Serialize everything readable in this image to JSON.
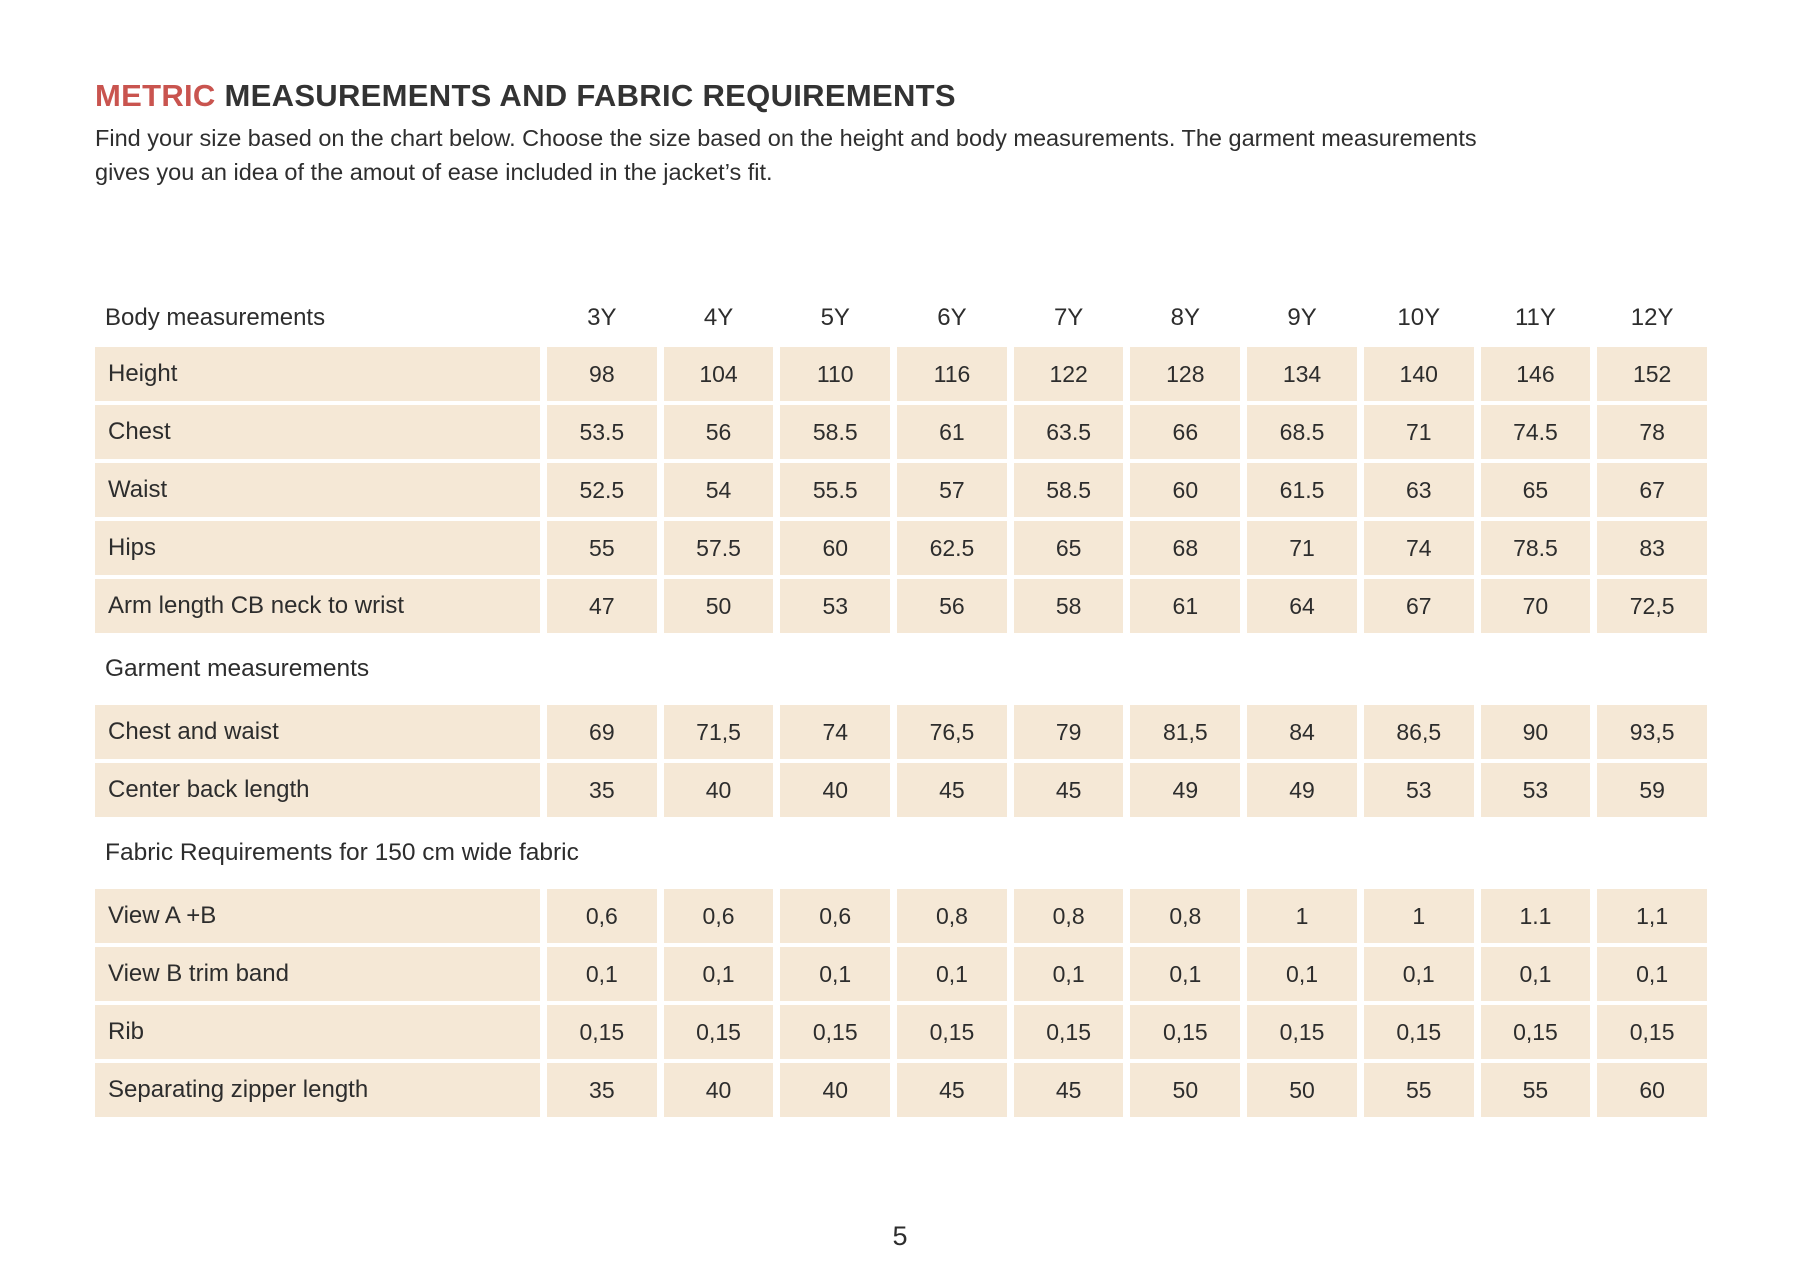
{
  "colors": {
    "accent": "#c9544f",
    "cell_bg": "#f5e8d6",
    "text": "#2d2d2d"
  },
  "header": {
    "title_accent": "METRIC",
    "title_rest": "MEASUREMENTS AND FABRIC REQUIREMENTS",
    "subtitle_lines": [
      "Find your size based on the chart below. Choose the size based on the height and body measurements. The garment measurements",
      "gives you an idea of the amout of ease included in the jacket’s fit."
    ]
  },
  "table": {
    "size_headers": [
      "3Y",
      "4Y",
      "5Y",
      "6Y",
      "7Y",
      "8Y",
      "9Y",
      "10Y",
      "11Y",
      "12Y"
    ],
    "sections": [
      {
        "label": "Body measurements",
        "rows": [
          {
            "label": "Height",
            "values": [
              "98",
              "104",
              "110",
              "116",
              "122",
              "128",
              "134",
              "140",
              "146",
              "152"
            ]
          },
          {
            "label": "Chest",
            "values": [
              "53.5",
              "56",
              "58.5",
              "61",
              "63.5",
              "66",
              "68.5",
              "71",
              "74.5",
              "78"
            ]
          },
          {
            "label": "Waist",
            "values": [
              "52.5",
              "54",
              "55.5",
              "57",
              "58.5",
              "60",
              "61.5",
              "63",
              "65",
              "67"
            ]
          },
          {
            "label": "Hips",
            "values": [
              "55",
              "57.5",
              "60",
              "62.5",
              "65",
              "68",
              "71",
              "74",
              "78.5",
              "83"
            ]
          },
          {
            "label": "Arm length CB neck to wrist",
            "values": [
              "47",
              "50",
              "53",
              "56",
              "58",
              "61",
              "64",
              "67",
              "70",
              "72,5"
            ]
          }
        ]
      },
      {
        "label": "Garment measurements",
        "rows": [
          {
            "label": "Chest and waist",
            "values": [
              "69",
              "71,5",
              "74",
              "76,5",
              "79",
              "81,5",
              "84",
              "86,5",
              "90",
              "93,5"
            ]
          },
          {
            "label": "Center back length",
            "values": [
              "35",
              "40",
              "40",
              "45",
              "45",
              "49",
              "49",
              "53",
              "53",
              "59"
            ]
          }
        ]
      },
      {
        "label": "Fabric Requirements for 150 cm wide fabric",
        "rows": [
          {
            "label": "View A +B",
            "values": [
              "0,6",
              "0,6",
              "0,6",
              "0,8",
              "0,8",
              "0,8",
              "1",
              "1",
              "1.1",
              "1,1"
            ]
          },
          {
            "label": "View B trim band",
            "values": [
              "0,1",
              "0,1",
              "0,1",
              "0,1",
              "0,1",
              "0,1",
              "0,1",
              "0,1",
              "0,1",
              "0,1"
            ]
          },
          {
            "label": "Rib",
            "values": [
              "0,15",
              "0,15",
              "0,15",
              "0,15",
              "0,15",
              "0,15",
              "0,15",
              "0,15",
              "0,15",
              "0,15"
            ]
          },
          {
            "label": "Separating zipper length",
            "values": [
              "35",
              "40",
              "40",
              "45",
              "45",
              "50",
              "50",
              "55",
              "55",
              "60"
            ]
          }
        ]
      }
    ]
  },
  "footer": {
    "page_number": "5"
  }
}
